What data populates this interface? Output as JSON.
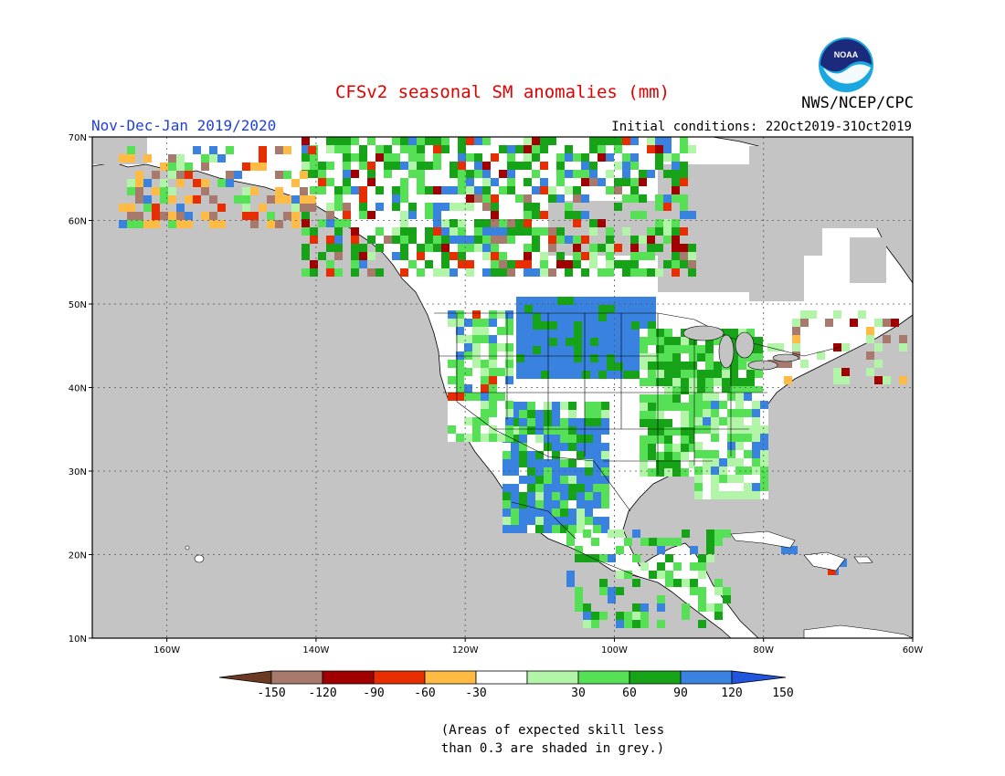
{
  "title": "CFSv2 seasonal SM anomalies (mm)",
  "season": "Nov-Dec-Jan 2019/2020",
  "initial_conditions": "Initial conditions: 22Oct2019-31Oct2019",
  "agency": "NWS/NCEP/CPC",
  "logo": {
    "icon": "noaa-logo-icon",
    "text": "NOAA"
  },
  "map": {
    "lat_labels": [
      "70N",
      "60N",
      "50N",
      "40N",
      "30N",
      "20N",
      "10N"
    ],
    "lon_labels": [
      "160W",
      "140W",
      "120W",
      "100W",
      "80W",
      "60W"
    ],
    "extent": {
      "lon_min": -170,
      "lon_max": -60,
      "lat_min": 10,
      "lat_max": 70
    },
    "ocean_color": "#c4c4c4",
    "low_skill_color": "#c4c4c4"
  },
  "colorbar": {
    "labels": [
      "-150",
      "-120",
      "-90",
      "-60",
      "-30",
      "30",
      "60",
      "90",
      "120",
      "150"
    ],
    "colors": [
      "#6b3a22",
      "#a87a6e",
      "#a10000",
      "#e82d00",
      "#ffbb44",
      "#ffffff",
      "#b3f5a8",
      "#55e055",
      "#17a317",
      "#3a82e0",
      "#2255dd"
    ]
  },
  "note": {
    "line1": "(Areas of expected skill less",
    "line2": "than 0.3 are shaded in grey.)"
  }
}
